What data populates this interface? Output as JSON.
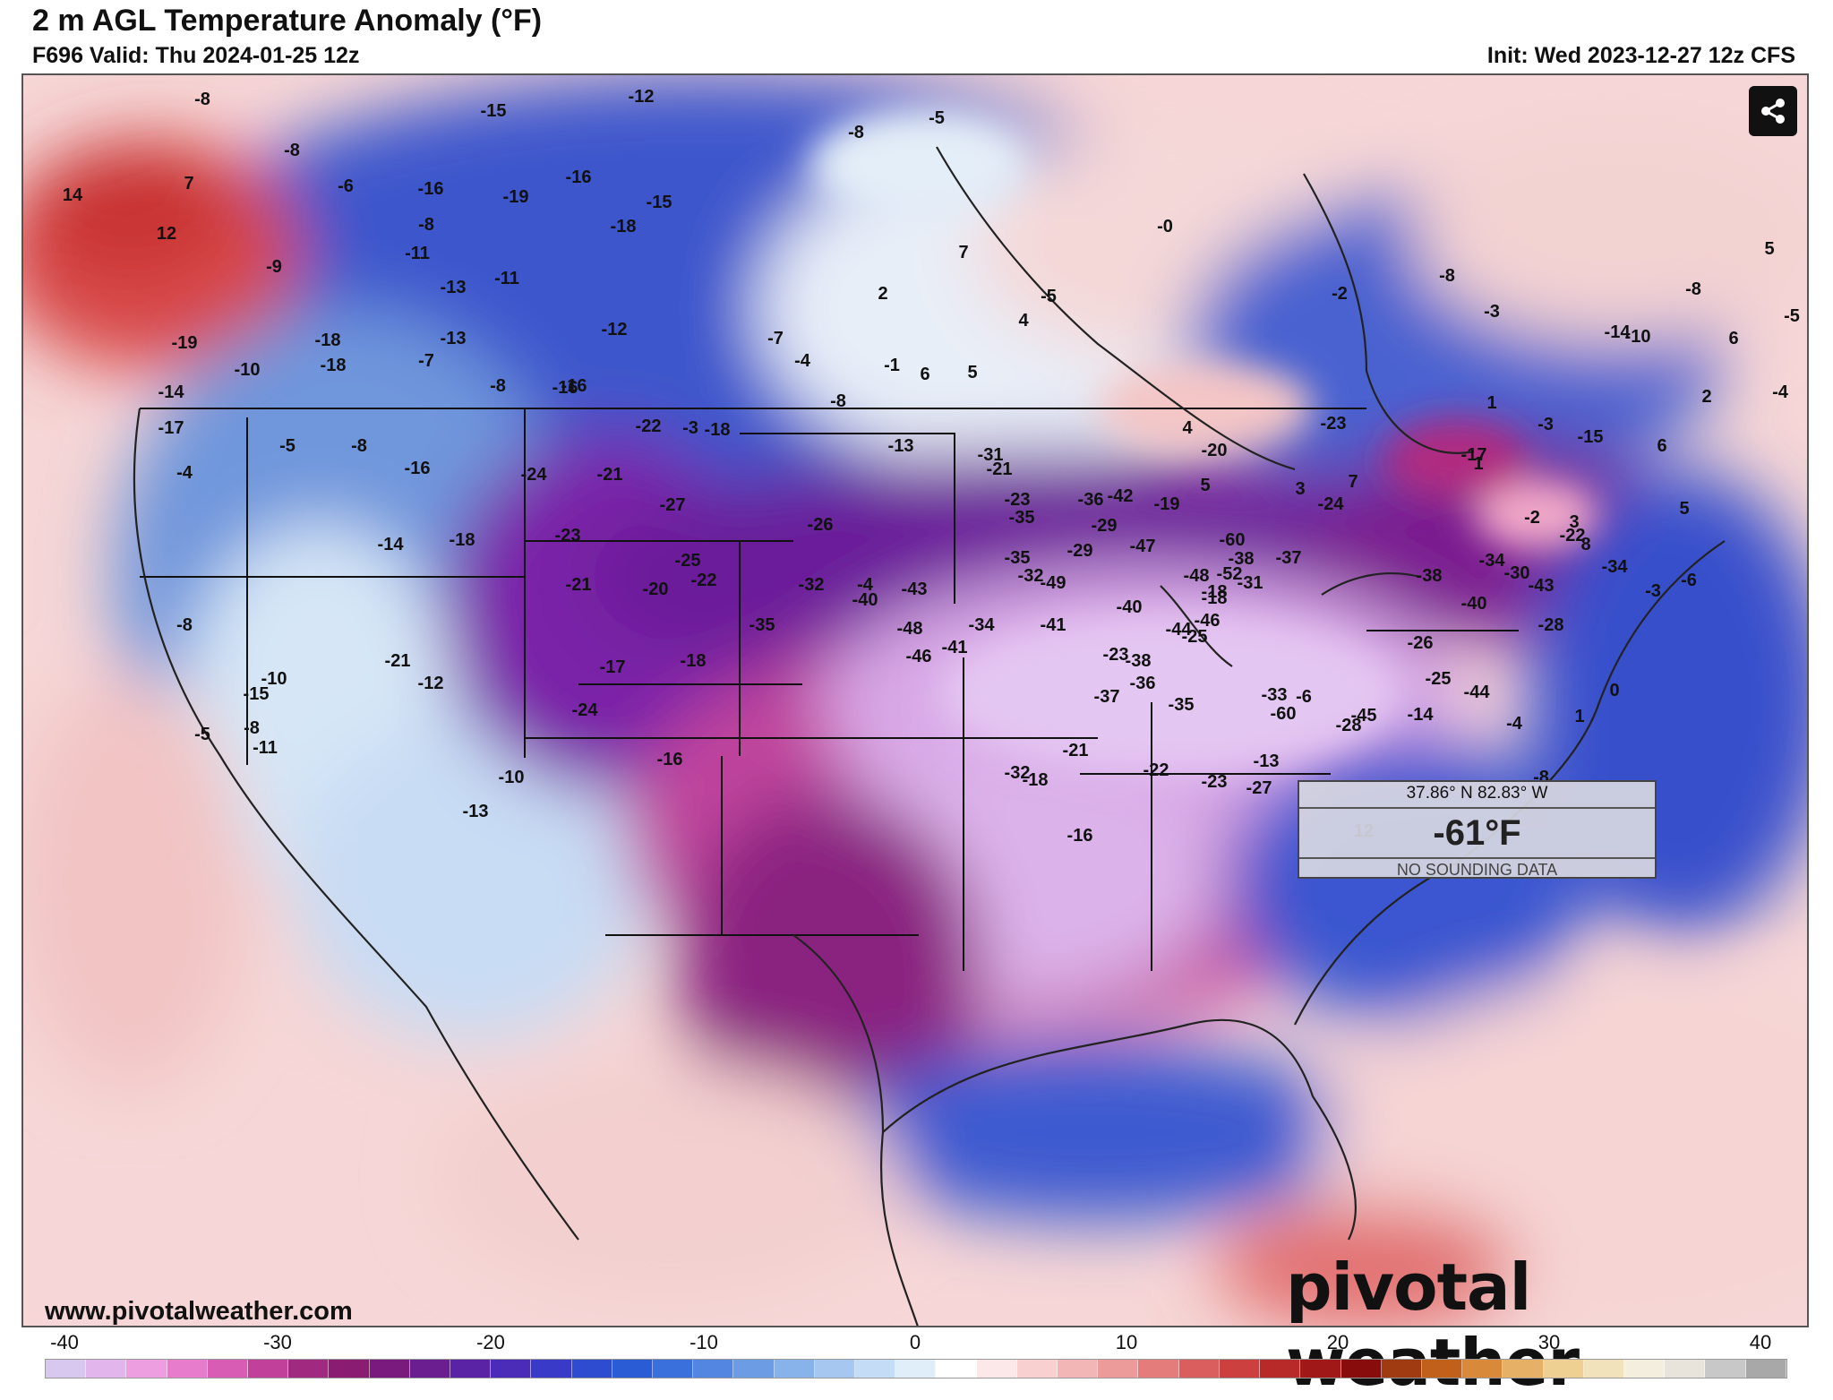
{
  "header": {
    "title": "2 m AGL Temperature Anomaly (°F)",
    "valid": "F696 Valid: Thu 2024-01-25 12z",
    "init": "Init: Wed 2023-12-27 12z CFS"
  },
  "footer": {
    "site_url": "www.pivotalweather.com",
    "logo_text": "pivotal weather"
  },
  "tooltip": {
    "coords": "37.86° N 82.83° W",
    "temperature": "-61°F",
    "note": "NO SOUNDING DATA"
  },
  "icons": {
    "share": "share-icon"
  },
  "colorbar": {
    "ticks": [
      "-40",
      "-30",
      "-20",
      "-10",
      "0",
      "10",
      "20",
      "30",
      "40"
    ],
    "colors": [
      "#d8c8f0",
      "#e2b6ec",
      "#ec9ee0",
      "#e87ccc",
      "#d85cb4",
      "#c0409a",
      "#a02a80",
      "#8a1c72",
      "#7a1a7e",
      "#6a1e90",
      "#5a22a4",
      "#4a2cb8",
      "#3a3ac8",
      "#2e4cd0",
      "#2a5cd6",
      "#3a70dc",
      "#5286e0",
      "#6c9ce4",
      "#88b2ea",
      "#a6c8f0",
      "#c4dcf6",
      "#e0eefa",
      "#ffffff",
      "#fce8e8",
      "#f8d0d0",
      "#f2b6b6",
      "#ec9a9a",
      "#e47c7c",
      "#da5e5e",
      "#cc4040",
      "#b82a2a",
      "#a01818",
      "#880c0c",
      "#a03a10",
      "#c0601a",
      "#d88a3a",
      "#e6b066",
      "#eed092",
      "#f2e2bc",
      "#f4eede",
      "#e8e4dc",
      "#c8c8c8",
      "#a8a8a8"
    ]
  },
  "map_values": [
    "-8",
    "-12",
    "14",
    "-15",
    "-16",
    "-5",
    "-8",
    "-8",
    "7",
    "-6",
    "-16",
    "-19",
    "-15",
    "12",
    "-8",
    "-18",
    "-11",
    "-9",
    "-11",
    "-13",
    "-18",
    "-19",
    "-18",
    "-10",
    "-14",
    "-17",
    "-5",
    "-8",
    "-16",
    "-4",
    "-13",
    "-7",
    "-8",
    "-16",
    "-12",
    "-22",
    "-24",
    "-21",
    "-27",
    "-18",
    "-13",
    "-7",
    "-4",
    "-1",
    "-8",
    "-16",
    "-3",
    "-4",
    "-14",
    "-10",
    "-8",
    "-5",
    "-8",
    "-15",
    "-11",
    "-10",
    "-13",
    "-12",
    "-21",
    "-18",
    "-23",
    "-21",
    "-25",
    "-20",
    "-17",
    "-18",
    "-16",
    "-24",
    "-26",
    "-22",
    "-31",
    "-35",
    "-32",
    "-40",
    "-43",
    "-48",
    "-46",
    "-41",
    "-34",
    "-35",
    "-35",
    "-49",
    "-32",
    "-29",
    "-36",
    "-42",
    "-47",
    "-60",
    "-48",
    "-52",
    "-46",
    "-44",
    "-40",
    "-38",
    "-37",
    "-38",
    "-31",
    "-25",
    "-23",
    "-18",
    "-35",
    "-36",
    "-41",
    "-37",
    "-22",
    "-27",
    "-33",
    "-28",
    "-25",
    "-21",
    "-18",
    "-32",
    "-16",
    "-23",
    "-13",
    "-60",
    "-45",
    "-38",
    "-40",
    "-43",
    "-44",
    "-34",
    "-22",
    "-34",
    "-30",
    "-28",
    "-26",
    "-24",
    "-23",
    "-20",
    "-19",
    "-29",
    "-23",
    "-21",
    "-18",
    "-17",
    "-15",
    "-14",
    "-10",
    "-8",
    "6",
    "5",
    "-5",
    "-4",
    "2",
    "-3",
    "1",
    "-3",
    "-2",
    "-8",
    "-0",
    "-5",
    "2",
    "7",
    "6",
    "5",
    "4",
    "4",
    "5",
    "3",
    "7",
    "1",
    "-2",
    "3",
    "8",
    "6",
    "5",
    "-6",
    "-3",
    "0",
    "1",
    "-8",
    "-4",
    "-14",
    "-6",
    "12"
  ],
  "map_label_positions_note": ""
}
